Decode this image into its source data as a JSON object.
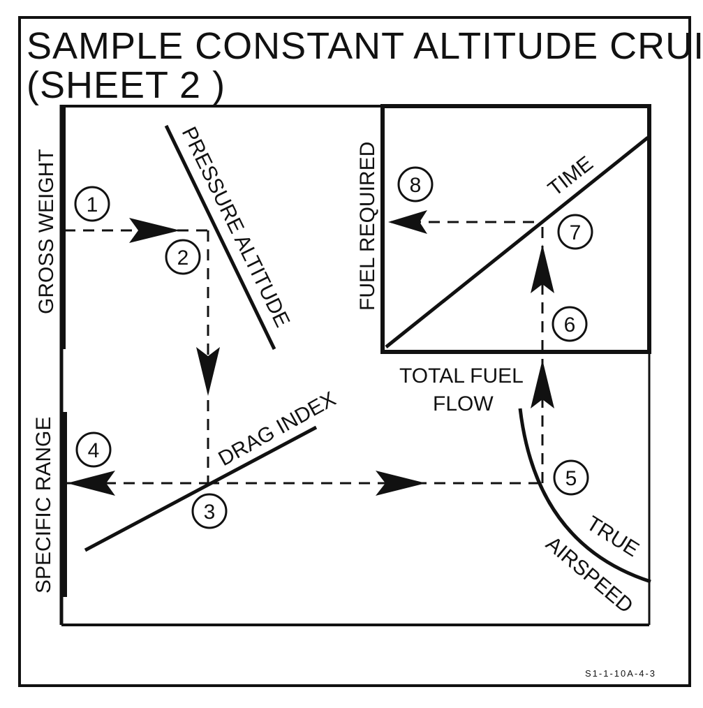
{
  "title": {
    "line1": "SAMPLE CONSTANT ALTITUDE CRUISE",
    "line2": "(SHEET 2 )"
  },
  "labels": {
    "gross_weight": "GROSS WEIGHT",
    "pressure_altitude": "PRESSURE ALTITUDE",
    "specific_range": "SPECIFIC RANGE",
    "drag_index": "DRAG INDEX",
    "fuel_required": "FUEL REQUIRED",
    "time": "TIME",
    "total_fuel_flow_1": "TOTAL FUEL",
    "total_fuel_flow_2": "FLOW",
    "true": "TRUE",
    "airspeed": "AIRSPEED"
  },
  "steps": [
    "1",
    "2",
    "3",
    "4",
    "5",
    "6",
    "7",
    "8"
  ],
  "reference": "S1-1-10A-4-3",
  "colors": {
    "ink": "#111111",
    "paper": "#ffffff"
  }
}
